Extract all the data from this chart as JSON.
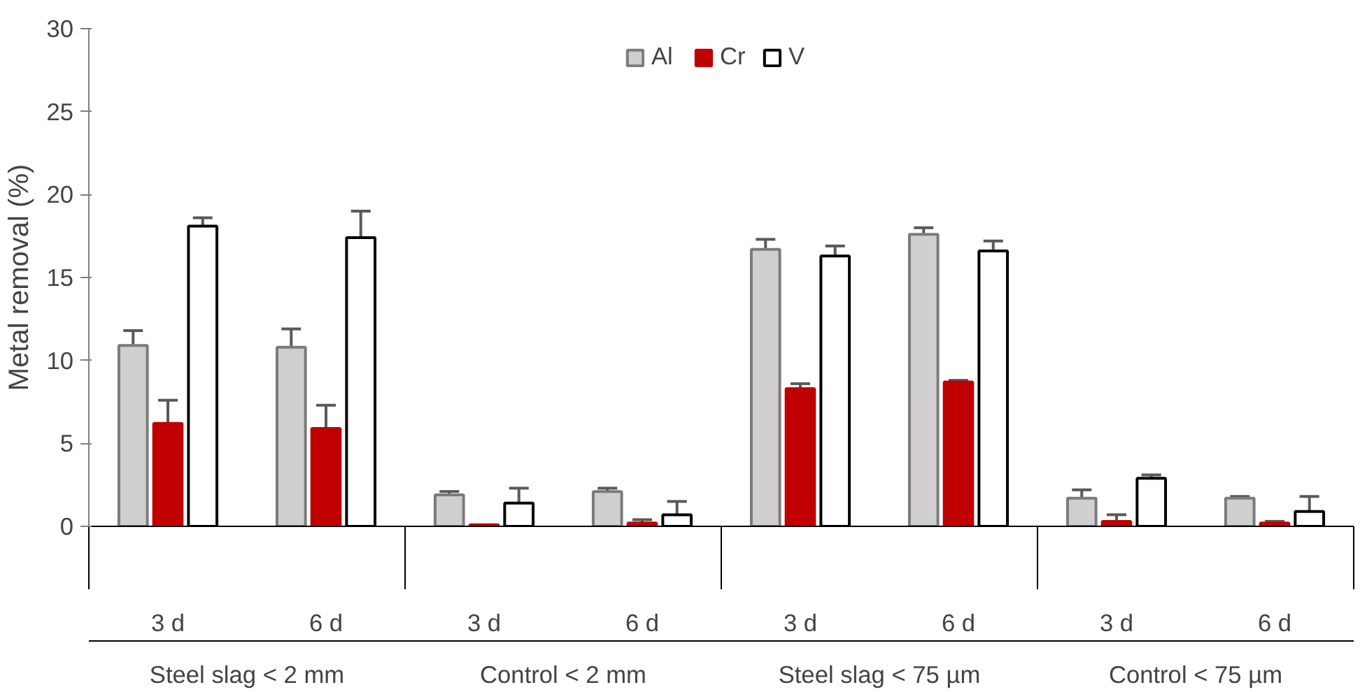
{
  "chart_data": {
    "type": "bar",
    "ylabel": "Metal removal (%)",
    "categories": [
      "3 d",
      "6 d",
      "3 d",
      "6 d",
      "3 d",
      "6 d",
      "3 d",
      "6 d"
    ],
    "annotations": [
      "Steel slag < 2 mm",
      "Control < 2 mm",
      "Steel slag < 75 µm",
      "Control < 75 µm"
    ],
    "series": [
      {
        "name": "Al",
        "color": "#d0cece",
        "values": [
          10.9,
          10.8,
          1.9,
          2.1,
          16.7,
          17.6,
          1.7,
          1.7
        ],
        "errors": [
          0.9,
          1.1,
          0.2,
          0.2,
          0.6,
          0.4,
          0.5,
          0.1
        ]
      },
      {
        "name": "Cr",
        "color": "#c00000",
        "values": [
          6.2,
          5.9,
          0.1,
          0.2,
          8.3,
          8.7,
          0.3,
          0.2
        ],
        "errors": [
          1.4,
          1.4,
          null,
          0.2,
          0.3,
          0.1,
          0.4,
          0.1
        ]
      },
      {
        "name": "V",
        "color": "#ffffff",
        "values": [
          18.1,
          17.4,
          1.4,
          0.7,
          16.3,
          16.6,
          2.9,
          0.9
        ],
        "errors": [
          0.5,
          1.6,
          0.9,
          0.8,
          0.6,
          0.6,
          0.2,
          0.9
        ]
      }
    ],
    "ylim": [
      0,
      30
    ],
    "yticks": [
      0,
      5,
      10,
      15,
      20,
      25,
      30
    ],
    "grid": false,
    "legend": "top"
  }
}
